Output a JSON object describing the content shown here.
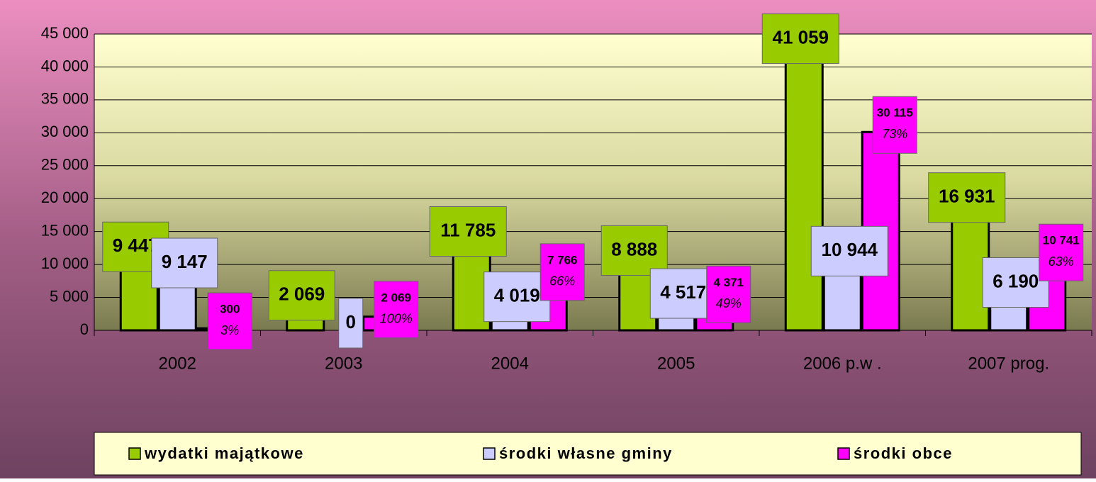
{
  "chart_data": {
    "type": "bar",
    "categories": [
      "2002",
      "2003",
      "2004",
      "2005",
      "2006 p.w .",
      "2007 prog."
    ],
    "series": [
      {
        "name": "wydatki majątkowe",
        "color": "#99cc00",
        "values": [
          9447,
          2069,
          11785,
          8888,
          41059,
          16931
        ],
        "value_labels": [
          "9 447",
          "2 069",
          "11 785",
          "8 888",
          "41 059",
          "16 931"
        ]
      },
      {
        "name": "środki własne gminy",
        "color": "#ccccff",
        "values": [
          9147,
          0,
          4019,
          4517,
          10944,
          6190
        ],
        "value_labels": [
          "9 147",
          "0",
          "4 019",
          "4 517",
          "10 944",
          "6 190"
        ]
      },
      {
        "name": "środki obce",
        "color": "#ff00ff",
        "values": [
          300,
          2069,
          7766,
          4371,
          30115,
          10741
        ],
        "value_labels": [
          "300",
          "2 069",
          "7 766",
          "4 371",
          "30 115",
          "10 741"
        ],
        "share_labels": [
          "3%",
          "100%",
          "66%",
          "49%",
          "73%",
          "63%"
        ]
      }
    ],
    "ylim": [
      0,
      45000
    ],
    "yticks": [
      0,
      {
        "value": 5000,
        "label": "5 000"
      },
      {
        "value": 10000,
        "label": "10 000"
      },
      {
        "value": 15000,
        "label": "15 000"
      },
      {
        "value": 20000,
        "label": "20 000"
      },
      {
        "value": 25000,
        "label": "25 000"
      },
      {
        "value": 30000,
        "label": "30 000"
      },
      {
        "value": 35000,
        "label": "35 000"
      },
      {
        "value": 40000,
        "label": "40 000"
      },
      {
        "value": 45000,
        "label": "45 000"
      }
    ],
    "grid": true
  }
}
